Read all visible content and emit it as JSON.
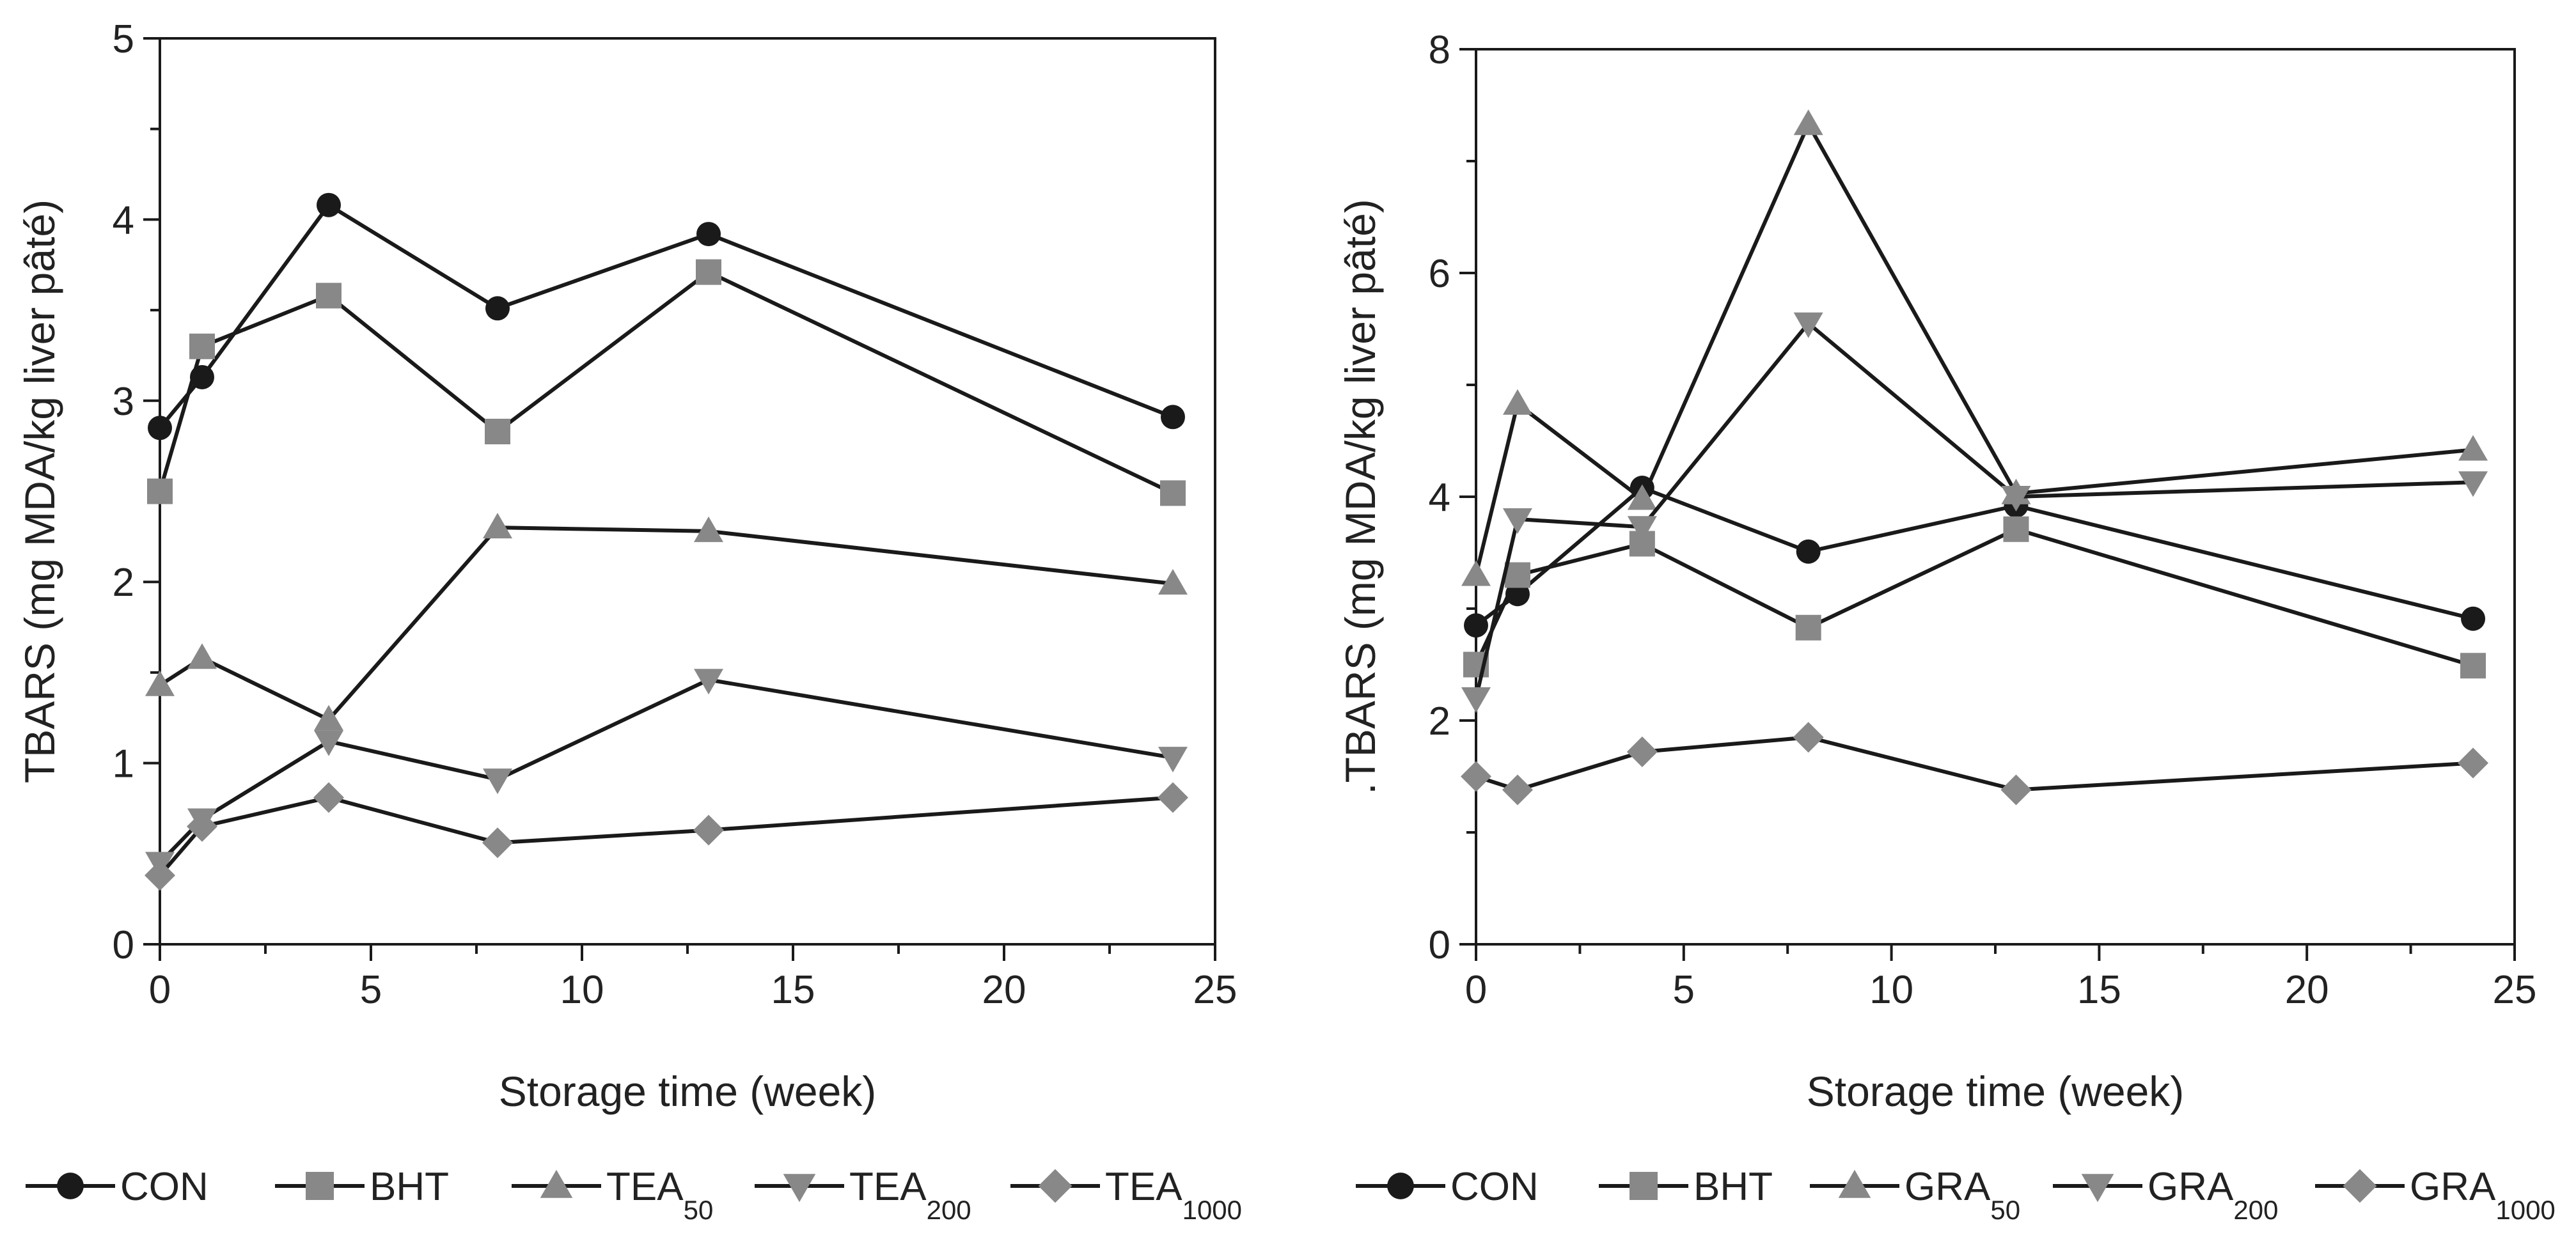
{
  "chart_data": [
    {
      "type": "line",
      "title": "",
      "xlabel": "Storage time (week)",
      "ylabel": "TBARS (mg MDA/kg liver pâté)",
      "xlim": [
        0,
        25
      ],
      "ylim": [
        0,
        5
      ],
      "xticks": [
        "0",
        "5",
        "10",
        "15",
        "20",
        "25"
      ],
      "yticks": [
        "0",
        "1",
        "2",
        "3",
        "4",
        "5"
      ],
      "x": [
        0,
        1,
        4,
        8,
        13,
        24
      ],
      "grid": false,
      "legend_placement": "bottom",
      "series": [
        {
          "name": "CON",
          "sub": "",
          "marker": "circle",
          "color": "#1a1a1a",
          "values": [
            2.85,
            3.13,
            4.08,
            3.51,
            3.92,
            2.91
          ]
        },
        {
          "name": "BHT",
          "sub": "",
          "marker": "square",
          "color": "#888888",
          "values": [
            2.5,
            3.3,
            3.58,
            2.83,
            3.71,
            2.49
          ]
        },
        {
          "name": "TEA",
          "sub": "50",
          "marker": "triangle-up",
          "color": "#888888",
          "values": [
            1.43,
            1.58,
            1.24,
            2.3,
            2.28,
            1.99
          ]
        },
        {
          "name": "TEA",
          "sub": "200",
          "marker": "triangle-down",
          "color": "#888888",
          "values": [
            0.45,
            0.69,
            1.12,
            0.91,
            1.46,
            1.03
          ]
        },
        {
          "name": "TEA",
          "sub": "1000",
          "marker": "diamond",
          "color": "#888888",
          "values": [
            0.38,
            0.65,
            0.81,
            0.56,
            0.63,
            0.81
          ]
        }
      ]
    },
    {
      "type": "line",
      "title": "",
      "xlabel": "Storage time (week)",
      "ylabel": ".TBARS (mg MDA/kg liver pâté)",
      "xlim": [
        0,
        25
      ],
      "ylim": [
        0,
        8
      ],
      "xticks": [
        "0",
        "5",
        "10",
        "15",
        "20",
        "25"
      ],
      "yticks": [
        "0",
        "2",
        "4",
        "6",
        "8"
      ],
      "x": [
        0,
        1,
        4,
        8,
        13,
        24
      ],
      "grid": false,
      "legend_placement": "bottom",
      "series": [
        {
          "name": "CON",
          "sub": "",
          "marker": "circle",
          "color": "#1a1a1a",
          "values": [
            2.85,
            3.13,
            4.08,
            3.51,
            3.92,
            2.91
          ]
        },
        {
          "name": "BHT",
          "sub": "",
          "marker": "square",
          "color": "#888888",
          "values": [
            2.5,
            3.3,
            3.58,
            2.83,
            3.71,
            2.49
          ]
        },
        {
          "name": "GRA",
          "sub": "50",
          "marker": "triangle-up",
          "color": "#888888",
          "values": [
            3.3,
            4.83,
            3.98,
            7.33,
            4.03,
            4.42
          ]
        },
        {
          "name": "GRA",
          "sub": "200",
          "marker": "triangle-down",
          "color": "#888888",
          "values": [
            2.2,
            3.8,
            3.73,
            5.55,
            4.0,
            4.13
          ]
        },
        {
          "name": "GRA",
          "sub": "1000",
          "marker": "diamond",
          "color": "#888888",
          "values": [
            1.5,
            1.38,
            1.72,
            1.85,
            1.38,
            1.62
          ]
        }
      ]
    }
  ]
}
